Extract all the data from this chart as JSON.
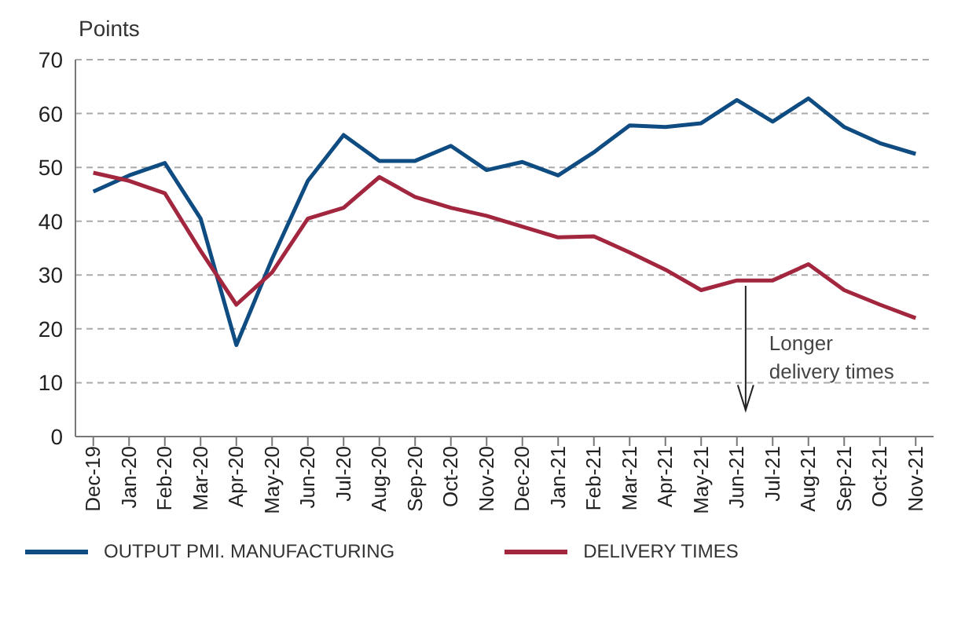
{
  "chart_data": {
    "type": "line",
    "ylabel": "Points",
    "categories": [
      "Dec-19",
      "Jan-20",
      "Feb-20",
      "Mar-20",
      "Apr-20",
      "May-20",
      "Jun-20",
      "Jul-20",
      "Aug-20",
      "Sep-20",
      "Oct-20",
      "Nov-20",
      "Dec-20",
      "Jan-21",
      "Feb-21",
      "Mar-21",
      "Apr-21",
      "May-21",
      "Jun-21",
      "Jul-21",
      "Aug-21",
      "Sep-21",
      "Oct-21",
      "Nov-21"
    ],
    "series": [
      {
        "name": "OUTPUT PMI. MANUFACTURING",
        "color": "#0f4c81",
        "values": [
          45.5,
          48.5,
          50.8,
          40.5,
          17,
          33,
          47.5,
          56,
          51.2,
          51.2,
          54,
          49.5,
          51,
          48.5,
          52.8,
          57.8,
          57.5,
          58.2,
          62.5,
          58.5,
          62.8,
          57.5,
          54.5,
          52.5
        ]
      },
      {
        "name": "DELIVERY TIMES",
        "color": "#a3263f",
        "values": [
          49,
          47.5,
          45.2,
          34.5,
          24.5,
          30.5,
          40.5,
          42.5,
          48.2,
          44.5,
          42.5,
          41,
          39,
          37,
          37.2,
          34.2,
          31,
          27.2,
          29,
          29,
          32,
          27.2,
          24.5,
          22
        ]
      }
    ],
    "ylim": [
      0,
      70
    ],
    "yticks": [
      0,
      10,
      20,
      30,
      40,
      50,
      60,
      70
    ],
    "grid": "y",
    "legend": "bottom",
    "marker": "none",
    "line_style": "solid",
    "annotations": [
      "Longer delivery times"
    ]
  }
}
